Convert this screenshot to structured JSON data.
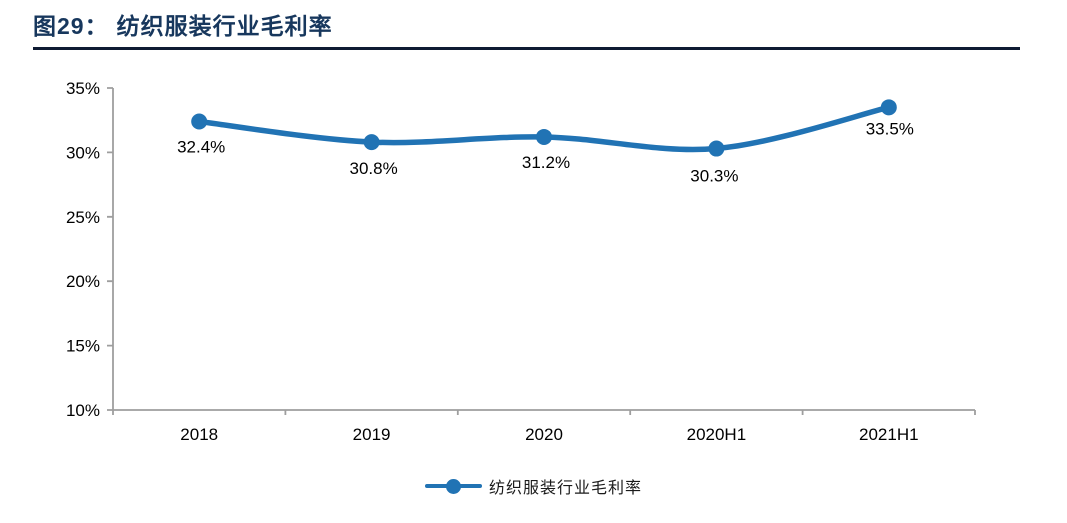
{
  "figure": {
    "title_prefix": "图29：",
    "title_text": "纺织服装行业毛利率",
    "title_color": "#17375D",
    "rule_color": "#0F1B33"
  },
  "chart_data": {
    "type": "line",
    "title": "纺织服装行业毛利率",
    "categories": [
      "2018",
      "2019",
      "2020",
      "2020H1",
      "2021H1"
    ],
    "series": [
      {
        "name": "纺织服装行业毛利率",
        "values": [
          32.4,
          30.8,
          31.2,
          30.3,
          33.5
        ]
      }
    ],
    "data_labels": [
      "32.4%",
      "30.8%",
      "31.2%",
      "30.3%",
      "33.5%"
    ],
    "y_ticks": [
      "35%",
      "30%",
      "25%",
      "20%",
      "15%",
      "10%"
    ],
    "y_tick_values": [
      35,
      30,
      25,
      20,
      15,
      10
    ],
    "ylim": [
      10,
      35
    ],
    "grid": false,
    "smooth": true,
    "line_color": "#2173B4",
    "axis_color": "#9E9E9E",
    "label_color": "#000000",
    "legend_position": "bottom",
    "legend_label": "纺织服装行业毛利率"
  }
}
